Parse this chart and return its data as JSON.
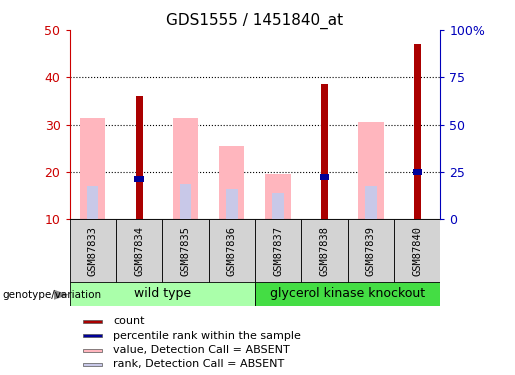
{
  "title": "GDS1555 / 1451840_at",
  "samples": [
    "GSM87833",
    "GSM87834",
    "GSM87835",
    "GSM87836",
    "GSM87837",
    "GSM87838",
    "GSM87839",
    "GSM87840"
  ],
  "count_values": [
    0,
    36,
    0,
    0,
    0,
    38.5,
    0,
    47
  ],
  "rank_values": [
    0,
    18.5,
    0,
    0,
    0,
    19,
    0,
    20
  ],
  "value_absent": [
    31.5,
    0,
    31.5,
    25.5,
    19.5,
    0,
    30.5,
    0
  ],
  "rank_absent": [
    17,
    0,
    17.5,
    16.5,
    15.5,
    0,
    17,
    0
  ],
  "ylim": [
    10,
    50
  ],
  "yticks_left": [
    10,
    20,
    30,
    40,
    50
  ],
  "ytick_right_labels": [
    "0",
    "25",
    "50",
    "75",
    "100%"
  ],
  "count_color": "#AA0000",
  "rank_color": "#000099",
  "value_absent_color": "#FFB6BE",
  "rank_absent_color": "#C8C8E8",
  "group_wt_color": "#AAFFAA",
  "group_gk_color": "#44DD44",
  "sample_box_color": "#D3D3D3",
  "legend_items": [
    {
      "label": "count",
      "color": "#AA0000"
    },
    {
      "label": "percentile rank within the sample",
      "color": "#000099"
    },
    {
      "label": "value, Detection Call = ABSENT",
      "color": "#FFB6BE"
    },
    {
      "label": "rank, Detection Call = ABSENT",
      "color": "#C8C8E8"
    }
  ],
  "left_color": "#CC0000",
  "right_color": "#0000BB"
}
